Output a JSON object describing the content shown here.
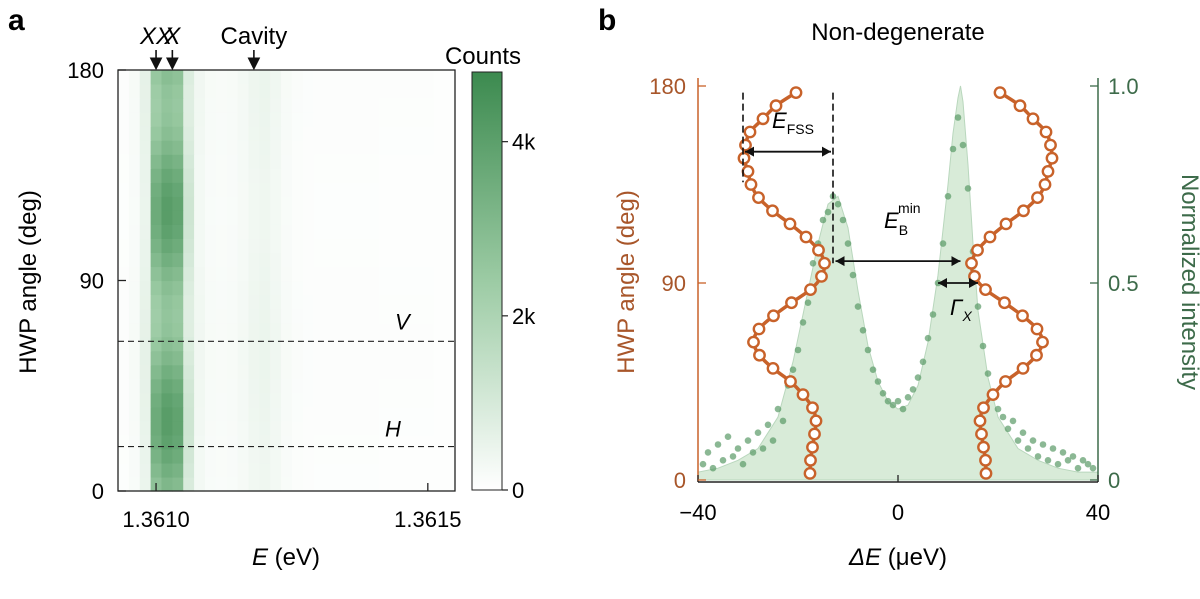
{
  "panels": {
    "a": {
      "letter": "a",
      "markers": {
        "xx": "XX",
        "x": "X",
        "cavity": "Cavity"
      },
      "colorbar": {
        "title": "Counts",
        "ticks": [
          {
            "v": 0,
            "label": "0"
          },
          {
            "v": 2000,
            "label": "2k"
          },
          {
            "v": 4000,
            "label": "4k"
          }
        ],
        "vmax": 4800
      },
      "line_labels": {
        "v": "V",
        "h": "H"
      }
    },
    "b": {
      "letter": "b",
      "title": "Non-degenerate",
      "annotations": {
        "efss": {
          "main": "E",
          "sub": "FSS"
        },
        "eb": {
          "main": "E",
          "sub": "B",
          "sup": "min"
        },
        "gamma": {
          "main": "Γ",
          "sub": "X"
        }
      }
    }
  },
  "chart_data": [
    {
      "type": "heatmap",
      "panel": "a",
      "xlabel": {
        "main": "E",
        "rest": " (eV)"
      },
      "ylabel": "HWP angle (deg)",
      "xlim": [
        1.36093,
        1.36155
      ],
      "ylim": [
        0,
        180
      ],
      "xticks": [
        {
          "v": 1.361,
          "label": "1.3610"
        },
        {
          "v": 1.3615,
          "label": "1.3615"
        }
      ],
      "yticks": [
        {
          "v": 0,
          "label": "0"
        },
        {
          "v": 90,
          "label": "90"
        },
        {
          "v": 180,
          "label": "180"
        }
      ],
      "marker_positions_eV": {
        "xx": 1.361,
        "x": 1.36103,
        "cavity": 1.36118
      },
      "polarization_lines_deg": {
        "v": 64,
        "h": 19
      },
      "x_columns_eV": [
        1.36094,
        1.36096,
        1.36098,
        1.361,
        1.36102,
        1.36104,
        1.36106,
        1.36108,
        1.3611,
        1.36112,
        1.36114,
        1.36116,
        1.36118,
        1.3612,
        1.36122,
        1.36124,
        1.36126,
        1.36128,
        1.3613,
        1.36132,
        1.36134,
        1.36136,
        1.36138,
        1.3614,
        1.36142,
        1.36144,
        1.36146,
        1.36148,
        1.3615,
        1.36152,
        1.36154
      ],
      "column_counts": [
        80,
        200,
        600,
        3600,
        4100,
        3900,
        1200,
        350,
        200,
        180,
        200,
        280,
        420,
        480,
        360,
        200,
        120,
        90,
        80,
        80,
        80,
        80,
        80,
        80,
        70,
        70,
        70,
        70,
        70,
        60,
        60
      ],
      "angle_modulation": "bright peak column splits into XX and X lines; maxima near 30, 80, 120, 170 deg"
    },
    {
      "type": "scatter",
      "panel": "b",
      "xlabel": {
        "main": "ΔE",
        "rest": " (μeV)"
      },
      "ylabel_left": "HWP angle (deg)",
      "ylabel_right": "Normalized intensity",
      "xlim": [
        -40,
        40
      ],
      "ylim_left": [
        0,
        180
      ],
      "ylim_right": [
        0,
        1.0
      ],
      "xticks": [
        {
          "v": -40,
          "label": "−40"
        },
        {
          "v": 0,
          "label": "0"
        },
        {
          "v": 40,
          "label": "40"
        }
      ],
      "yticks_left": [
        {
          "v": 0,
          "label": "0"
        },
        {
          "v": 90,
          "label": "90"
        },
        {
          "v": 180,
          "label": "180"
        }
      ],
      "yticks_right": [
        {
          "v": 0,
          "label": "0"
        },
        {
          "v": 0.5,
          "label": "0.5"
        },
        {
          "v": 1.0,
          "label": "1.0"
        }
      ],
      "colors": {
        "angle": "#c8622a",
        "intensity": "#5a9a66",
        "fill": "#d8ebd8"
      },
      "fss_dashed_x": [
        -31,
        -13
      ],
      "eb_arrow": {
        "x0": -12.5,
        "x1": 12.5,
        "angle": 100
      },
      "gamma_arrow": {
        "x0": 8,
        "x1": 16,
        "angle": 90
      },
      "angle_series": [
        {
          "name": "left",
          "points": [
            [
              -17.6,
              3
            ],
            [
              -17.5,
              9
            ],
            [
              -17.1,
              15
            ],
            [
              -16.7,
              21
            ],
            [
              -16.4,
              27
            ],
            [
              -17.1,
              33
            ],
            [
              -19,
              39
            ],
            [
              -21.5,
              45
            ],
            [
              -25,
              51
            ],
            [
              -27.7,
              57
            ],
            [
              -28.9,
              63
            ],
            [
              -27.8,
              69
            ],
            [
              -24.9,
              75
            ],
            [
              -21.3,
              81
            ],
            [
              -17.5,
              87
            ],
            [
              -15.3,
              93
            ],
            [
              -14.7,
              99
            ],
            [
              -15.9,
              105
            ],
            [
              -18.4,
              111
            ],
            [
              -21.6,
              117
            ],
            [
              -25.1,
              123
            ],
            [
              -27.9,
              129
            ],
            [
              -29.4,
              135
            ],
            [
              -30,
              141
            ],
            [
              -30.8,
              147
            ],
            [
              -30.5,
              153
            ],
            [
              -29.6,
              159
            ],
            [
              -27,
              165
            ],
            [
              -24.4,
              171
            ],
            [
              -20.4,
              177
            ]
          ]
        },
        {
          "name": "right",
          "points": [
            [
              17.6,
              3
            ],
            [
              17.5,
              9
            ],
            [
              17.1,
              15
            ],
            [
              16.7,
              21
            ],
            [
              16.4,
              27
            ],
            [
              17.1,
              33
            ],
            [
              19,
              39
            ],
            [
              21.5,
              45
            ],
            [
              25,
              51
            ],
            [
              27.7,
              57
            ],
            [
              28.9,
              63
            ],
            [
              27.8,
              69
            ],
            [
              24.9,
              75
            ],
            [
              21.3,
              81
            ],
            [
              17.5,
              87
            ],
            [
              15.3,
              93
            ],
            [
              14.7,
              99
            ],
            [
              15.9,
              105
            ],
            [
              18.4,
              111
            ],
            [
              21.6,
              117
            ],
            [
              25.1,
              123
            ],
            [
              27.9,
              129
            ],
            [
              29.4,
              135
            ],
            [
              30,
              141
            ],
            [
              30.8,
              147
            ],
            [
              30.5,
              153
            ],
            [
              29.6,
              159
            ],
            [
              27,
              165
            ],
            [
              24.4,
              171
            ],
            [
              20.4,
              177
            ]
          ]
        }
      ],
      "intensity_fit": [
        [
          -40,
          0.02
        ],
        [
          -36,
          0.03
        ],
        [
          -32,
          0.05
        ],
        [
          -28,
          0.08
        ],
        [
          -24,
          0.16
        ],
        [
          -21,
          0.3
        ],
        [
          -18,
          0.48
        ],
        [
          -16,
          0.6
        ],
        [
          -14,
          0.7
        ],
        [
          -12,
          0.72
        ],
        [
          -10,
          0.64
        ],
        [
          -8,
          0.48
        ],
        [
          -6,
          0.34
        ],
        [
          -4,
          0.25
        ],
        [
          -2,
          0.2
        ],
        [
          0,
          0.18
        ],
        [
          2,
          0.19
        ],
        [
          4,
          0.24
        ],
        [
          6,
          0.35
        ],
        [
          8,
          0.52
        ],
        [
          10,
          0.75
        ],
        [
          11,
          0.88
        ],
        [
          12,
          0.97
        ],
        [
          12.5,
          1.0
        ],
        [
          13,
          0.96
        ],
        [
          14,
          0.8
        ],
        [
          15,
          0.6
        ],
        [
          16,
          0.43
        ],
        [
          18,
          0.26
        ],
        [
          20,
          0.16
        ],
        [
          24,
          0.08
        ],
        [
          28,
          0.05
        ],
        [
          32,
          0.03
        ],
        [
          36,
          0.02
        ],
        [
          40,
          0.02
        ]
      ],
      "intensity_points": [
        [
          -39,
          0.04
        ],
        [
          -38,
          0.07
        ],
        [
          -37,
          0.03
        ],
        [
          -36,
          0.09
        ],
        [
          -35,
          0.05
        ],
        [
          -34,
          0.11
        ],
        [
          -33,
          0.06
        ],
        [
          -32,
          0.08
        ],
        [
          -31,
          0.04
        ],
        [
          -30,
          0.1
        ],
        [
          -29,
          0.07
        ],
        [
          -28,
          0.12
        ],
        [
          -27,
          0.08
        ],
        [
          -26,
          0.14
        ],
        [
          -25,
          0.1
        ],
        [
          -24,
          0.18
        ],
        [
          -23,
          0.15
        ],
        [
          -22,
          0.24
        ],
        [
          -21,
          0.28
        ],
        [
          -20,
          0.33
        ],
        [
          -19,
          0.4
        ],
        [
          -18,
          0.45
        ],
        [
          -17,
          0.55
        ],
        [
          -16,
          0.6
        ],
        [
          -15,
          0.66
        ],
        [
          -14,
          0.68
        ],
        [
          -13,
          0.72
        ],
        [
          -12,
          0.7
        ],
        [
          -11,
          0.66
        ],
        [
          -10,
          0.6
        ],
        [
          -9,
          0.52
        ],
        [
          -8,
          0.44
        ],
        [
          -7,
          0.38
        ],
        [
          -6,
          0.33
        ],
        [
          -5,
          0.28
        ],
        [
          -4,
          0.25
        ],
        [
          -3,
          0.22
        ],
        [
          -2,
          0.2
        ],
        [
          -1,
          0.19
        ],
        [
          0,
          0.2
        ],
        [
          1,
          0.18
        ],
        [
          2,
          0.21
        ],
        [
          3,
          0.23
        ],
        [
          4,
          0.26
        ],
        [
          5,
          0.3
        ],
        [
          6,
          0.36
        ],
        [
          7,
          0.42
        ],
        [
          8,
          0.5
        ],
        [
          9,
          0.6
        ],
        [
          10,
          0.72
        ],
        [
          11,
          0.84
        ],
        [
          12,
          0.92
        ],
        [
          13,
          0.85
        ],
        [
          14,
          0.74
        ],
        [
          15,
          0.58
        ],
        [
          16,
          0.44
        ],
        [
          17,
          0.34
        ],
        [
          18,
          0.27
        ],
        [
          19,
          0.22
        ],
        [
          20,
          0.18
        ],
        [
          21,
          0.16
        ],
        [
          22,
          0.13
        ],
        [
          23,
          0.15
        ],
        [
          24,
          0.1
        ],
        [
          25,
          0.12
        ],
        [
          26,
          0.08
        ],
        [
          27,
          0.1
        ],
        [
          28,
          0.06
        ],
        [
          29,
          0.09
        ],
        [
          30,
          0.05
        ],
        [
          31,
          0.08
        ],
        [
          32,
          0.04
        ],
        [
          33,
          0.07
        ],
        [
          34,
          0.05
        ],
        [
          35,
          0.06
        ],
        [
          36,
          0.03
        ],
        [
          37,
          0.05
        ],
        [
          38,
          0.04
        ],
        [
          39,
          0.03
        ]
      ]
    }
  ]
}
